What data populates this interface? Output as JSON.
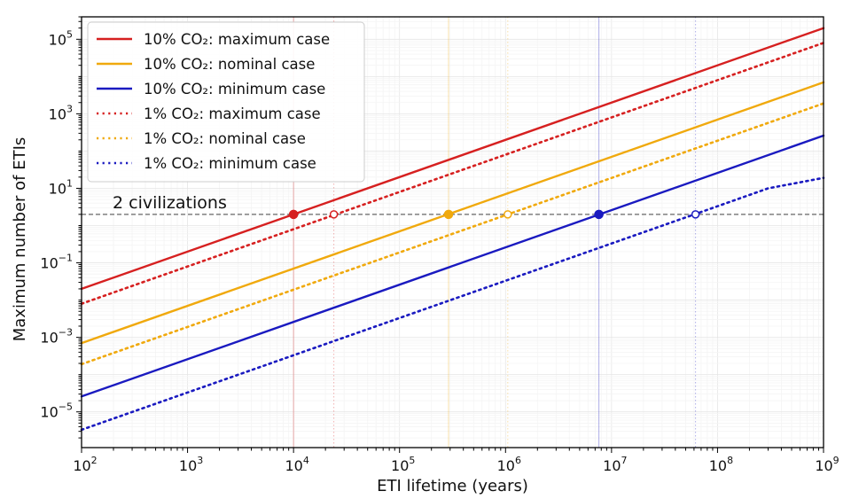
{
  "chart_data": {
    "type": "line",
    "title": "",
    "xlabel": "ETI lifetime (years)",
    "ylabel": "Maximum number of ETIs",
    "xscale": "log",
    "yscale": "log",
    "xlim": [
      100,
      1000000000
    ],
    "ylim": [
      1.1e-06,
      400000
    ],
    "grid": true,
    "x_ticks": [
      {
        "value": 100,
        "base": "10",
        "exp": "2"
      },
      {
        "value": 1000,
        "base": "10",
        "exp": "3"
      },
      {
        "value": 10000,
        "base": "10",
        "exp": "4"
      },
      {
        "value": 100000,
        "base": "10",
        "exp": "5"
      },
      {
        "value": 1000000,
        "base": "10",
        "exp": "6"
      },
      {
        "value": 10000000,
        "base": "10",
        "exp": "7"
      },
      {
        "value": 100000000,
        "base": "10",
        "exp": "8"
      },
      {
        "value": 1000000000,
        "base": "10",
        "exp": "9"
      }
    ],
    "y_ticks": [
      {
        "value": 1e-05,
        "base": "10",
        "exp": "−5"
      },
      {
        "value": 0.001,
        "base": "10",
        "exp": "−3"
      },
      {
        "value": 0.1,
        "base": "10",
        "exp": "−1"
      },
      {
        "value": 10,
        "base": "10",
        "exp": "1"
      },
      {
        "value": 1000,
        "base": "10",
        "exp": "3"
      },
      {
        "value": 100000,
        "base": "10",
        "exp": "5"
      }
    ],
    "reference_line": {
      "y": 2,
      "label": "2 civilizations",
      "color": "#666666"
    },
    "legend_position": "top-left",
    "series": [
      {
        "name": "10% CO₂: maximum case",
        "color": "#d62020",
        "style": "solid",
        "x": [
          100,
          1000000000
        ],
        "y": [
          0.02,
          200000
        ],
        "crossing_x": 10000,
        "marker": "filled"
      },
      {
        "name": "10% CO₂: nominal case",
        "color": "#f0a90d",
        "style": "solid",
        "x": [
          100,
          1000000000
        ],
        "y": [
          0.0007,
          7000
        ],
        "crossing_x": 290000,
        "marker": "filled"
      },
      {
        "name": "10% CO₂: minimum case",
        "color": "#1a1ac0",
        "style": "solid",
        "x": [
          100,
          1000000000
        ],
        "y": [
          2.6e-05,
          260
        ],
        "crossing_x": 7600000,
        "marker": "filled"
      },
      {
        "name": "1% CO₂: maximum case",
        "color": "#d62020",
        "style": "dotted",
        "x": [
          100,
          1000000000
        ],
        "y": [
          0.008,
          80000
        ],
        "crossing_x": 24000,
        "marker": "open"
      },
      {
        "name": "1% CO₂: nominal case",
        "color": "#f0a90d",
        "style": "dotted",
        "x": [
          100,
          1000000000
        ],
        "y": [
          0.00019,
          1900
        ],
        "crossing_x": 1050000,
        "marker": "open"
      },
      {
        "name": "1% CO₂: minimum case",
        "color": "#1a1ac0",
        "style": "dotted",
        "x": [
          100,
          100000000,
          300000000,
          1000000000
        ],
        "y": [
          3.3e-06,
          3.3,
          10,
          19
        ],
        "crossing_x": 62000000,
        "marker": "open"
      }
    ]
  }
}
